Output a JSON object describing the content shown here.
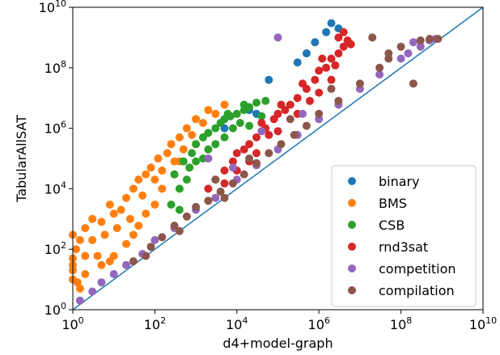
{
  "chart_data": {
    "type": "scatter",
    "title": "",
    "xlabel": "d4+model-graph",
    "ylabel": "TabularAllSAT",
    "xscale": "log",
    "yscale": "log",
    "xlim": [
      1,
      10000000000
    ],
    "ylim": [
      1,
      10000000000
    ],
    "x_ticks": [
      {
        "value": 1,
        "base": "10",
        "exp": "0"
      },
      {
        "value": 100,
        "base": "10",
        "exp": "2"
      },
      {
        "value": 10000,
        "base": "10",
        "exp": "4"
      },
      {
        "value": 1000000,
        "base": "10",
        "exp": "6"
      },
      {
        "value": 100000000,
        "base": "10",
        "exp": "8"
      },
      {
        "value": 10000000000,
        "base": "10",
        "exp": "10"
      }
    ],
    "y_ticks": [
      {
        "value": 1,
        "base": "10",
        "exp": "0"
      },
      {
        "value": 100,
        "base": "10",
        "exp": "2"
      },
      {
        "value": 10000,
        "base": "10",
        "exp": "4"
      },
      {
        "value": 1000000,
        "base": "10",
        "exp": "6"
      },
      {
        "value": 100000000,
        "base": "10",
        "exp": "8"
      },
      {
        "value": 10000000000,
        "base": "10",
        "exp": "10"
      }
    ],
    "grid": false,
    "legend_position": "lower-right",
    "reference_line": {
      "type": "y=x",
      "color": "#1f77b4"
    },
    "series": [
      {
        "name": "binary",
        "color": "#1f77b4",
        "points": [
          [
            2000000,
            3000000000
          ],
          [
            1500000,
            1500000000
          ],
          [
            3000000,
            2000000000
          ],
          [
            300000,
            150000000
          ],
          [
            500000,
            300000000
          ],
          [
            800000,
            700000000
          ],
          [
            60000,
            40000000
          ],
          [
            20000,
            4000000
          ],
          [
            5000,
            1000000
          ],
          [
            30000,
            3000000
          ]
        ]
      },
      {
        "name": "BMS",
        "color": "#ff7f0e",
        "points": [
          [
            1,
            50
          ],
          [
            1,
            30
          ],
          [
            1,
            20
          ],
          [
            1,
            10
          ],
          [
            1.2,
            100
          ],
          [
            1.5,
            200
          ],
          [
            1,
            300
          ],
          [
            1.3,
            8
          ],
          [
            2,
            500
          ],
          [
            3,
            1000
          ],
          [
            5,
            800
          ],
          [
            3,
            200
          ],
          [
            2,
            60
          ],
          [
            4,
            60
          ],
          [
            6,
            300
          ],
          [
            10,
            1500
          ],
          [
            8,
            3000
          ],
          [
            15,
            2000
          ],
          [
            20,
            5000
          ],
          [
            12,
            500
          ],
          [
            25,
            1000
          ],
          [
            30,
            10000
          ],
          [
            40,
            20000
          ],
          [
            50,
            6000
          ],
          [
            60,
            30000
          ],
          [
            80,
            50000
          ],
          [
            100,
            20000
          ],
          [
            120,
            100000
          ],
          [
            150,
            40000
          ],
          [
            200,
            150000
          ],
          [
            250,
            300000
          ],
          [
            300,
            80000
          ],
          [
            400,
            500000
          ],
          [
            500,
            200000
          ],
          [
            600,
            1000000
          ],
          [
            800,
            600000
          ],
          [
            1000,
            2000000
          ],
          [
            1500,
            1500000
          ],
          [
            2000,
            4000000
          ],
          [
            3000,
            3000000
          ],
          [
            5000,
            6000000
          ],
          [
            1000,
            300000
          ],
          [
            300,
            30000
          ],
          [
            100,
            3000
          ],
          [
            30,
            300
          ],
          [
            10,
            60
          ],
          [
            5,
            30
          ],
          [
            2,
            15
          ],
          [
            60,
            1500
          ],
          [
            150,
            10000
          ],
          [
            400,
            80000
          ],
          [
            40,
            600
          ],
          [
            20,
            150
          ],
          [
            8,
            40
          ],
          [
            1.5,
            5
          ]
        ]
      },
      {
        "name": "CSB",
        "color": "#2ca02c",
        "points": [
          [
            300,
            30000
          ],
          [
            500,
            80000
          ],
          [
            800,
            150000
          ],
          [
            1000,
            300000
          ],
          [
            1500,
            500000
          ],
          [
            2000,
            700000
          ],
          [
            3000,
            1000000
          ],
          [
            4000,
            1500000
          ],
          [
            5000,
            2000000
          ],
          [
            7000,
            2500000
          ],
          [
            10000,
            3000000
          ],
          [
            15000,
            4000000
          ],
          [
            20000,
            5000000
          ],
          [
            30000,
            7000000
          ],
          [
            50000,
            8000000
          ],
          [
            2000,
            200000
          ],
          [
            1000,
            80000
          ],
          [
            600,
            20000
          ],
          [
            400,
            10000
          ],
          [
            3000,
            300000
          ],
          [
            5000,
            500000
          ],
          [
            8000,
            1000000
          ],
          [
            12000,
            1500000
          ],
          [
            700,
            50000
          ],
          [
            1500,
            100000
          ],
          [
            20000,
            1200000
          ],
          [
            250,
            3000
          ],
          [
            400,
            2000
          ],
          [
            6000,
            3000000
          ],
          [
            15000,
            6000000
          ],
          [
            40000,
            2500000
          ]
        ]
      },
      {
        "name": "rnd3sat",
        "color": "#d62728",
        "points": [
          [
            2000,
            10000
          ],
          [
            3000,
            20000
          ],
          [
            5000,
            40000
          ],
          [
            8000,
            80000
          ],
          [
            10000,
            150000
          ],
          [
            15000,
            200000
          ],
          [
            20000,
            300000
          ],
          [
            30000,
            500000
          ],
          [
            50000,
            1000000
          ],
          [
            80000,
            2000000
          ],
          [
            100000,
            3000000
          ],
          [
            150000,
            4000000
          ],
          [
            200000,
            6000000
          ],
          [
            300000,
            10000000
          ],
          [
            500000,
            20000000
          ],
          [
            800000,
            40000000
          ],
          [
            1000000,
            80000000
          ],
          [
            1500000,
            100000000
          ],
          [
            2000000,
            200000000
          ],
          [
            3000000,
            300000000
          ],
          [
            4000000,
            500000000
          ],
          [
            5000000,
            800000000
          ],
          [
            3000000,
            1000000000
          ],
          [
            4000000,
            1500000000
          ],
          [
            6000000,
            600000000
          ],
          [
            2500000,
            120000000
          ],
          [
            5000,
            15000
          ],
          [
            10000,
            40000
          ],
          [
            30000,
            150000
          ],
          [
            100000,
            800000
          ],
          [
            300000,
            3000000
          ],
          [
            1000000,
            15000000
          ],
          [
            2000000,
            40000000
          ],
          [
            20000,
            80000
          ],
          [
            60000,
            600000
          ],
          [
            600000,
            8000000
          ],
          [
            40000,
            1500000
          ],
          [
            120000,
            6000000
          ],
          [
            400000,
            30000000
          ],
          [
            1200000,
            200000000
          ]
        ]
      },
      {
        "name": "competition",
        "color": "#9467bd",
        "points": [
          [
            1.5,
            2
          ],
          [
            3,
            4
          ],
          [
            5,
            8
          ],
          [
            10,
            15
          ],
          [
            20,
            30
          ],
          [
            50,
            70
          ],
          [
            100,
            200
          ],
          [
            300,
            500
          ],
          [
            1000,
            2000
          ],
          [
            3000,
            5000
          ],
          [
            10000,
            20000
          ],
          [
            30000,
            60000
          ],
          [
            100000,
            200000
          ],
          [
            300000,
            600000
          ],
          [
            1000000,
            2000000
          ],
          [
            3000000,
            6000000
          ],
          [
            10000000,
            20000000
          ],
          [
            30000000,
            60000000
          ],
          [
            100000000,
            200000000
          ],
          [
            150000000,
            300000000
          ],
          [
            300000000,
            500000000
          ],
          [
            500000000,
            800000000
          ],
          [
            200000000,
            700000000
          ],
          [
            700000000,
            900000000
          ],
          [
            100000,
            1000000000
          ],
          [
            2000,
            100000
          ],
          [
            8000,
            50000
          ],
          [
            40000,
            800000
          ],
          [
            400000,
            3000000
          ]
        ]
      },
      {
        "name": "compilation",
        "color": "#8c564b",
        "points": [
          [
            30,
            40
          ],
          [
            80,
            120
          ],
          [
            150,
            250
          ],
          [
            300,
            600
          ],
          [
            600,
            1200
          ],
          [
            1000,
            2500
          ],
          [
            2000,
            4000
          ],
          [
            4000,
            8000
          ],
          [
            8000,
            15000
          ],
          [
            15000,
            30000
          ],
          [
            30000,
            70000
          ],
          [
            60000,
            150000
          ],
          [
            120000,
            300000
          ],
          [
            250000,
            600000
          ],
          [
            500000,
            1200000
          ],
          [
            1000000,
            3000000
          ],
          [
            3000000,
            8000000
          ],
          [
            10000000,
            30000000
          ],
          [
            30000000,
            100000000
          ],
          [
            50000000,
            200000000
          ],
          [
            100000000,
            500000000
          ],
          [
            300000000,
            800000000
          ],
          [
            500000000,
            900000000
          ],
          [
            800000000,
            900000000
          ],
          [
            200000000,
            30000000
          ],
          [
            20000000,
            1000000000
          ],
          [
            50000000,
            300000000
          ],
          [
            3000,
            20000
          ],
          [
            20000,
            100000
          ],
          [
            200000,
            2000000
          ],
          [
            2000000,
            20000000
          ],
          [
            5000,
            5000
          ],
          [
            400,
            400
          ],
          [
            60,
            60
          ]
        ]
      }
    ]
  }
}
